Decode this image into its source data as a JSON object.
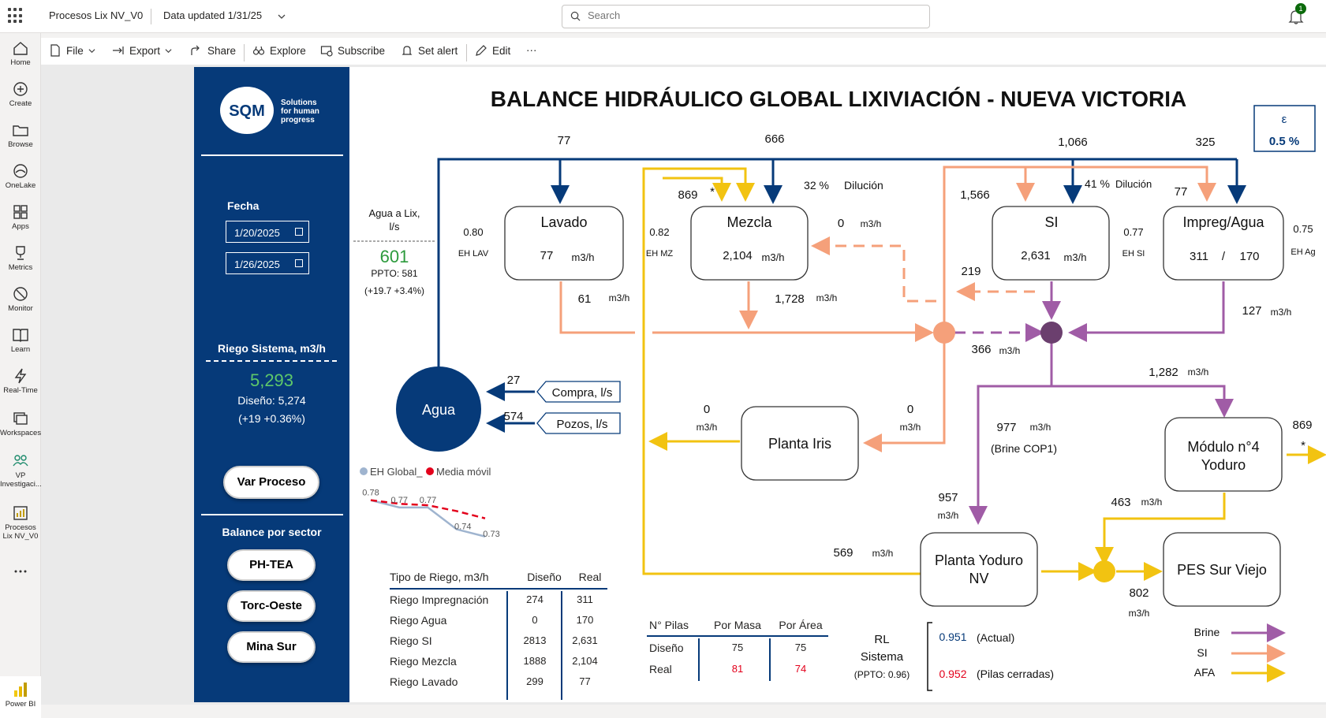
{
  "topbar": {
    "report_name": "Procesos Lix NV_V0",
    "data_updated": "Data updated 1/31/25",
    "search_placeholder": "Search",
    "notifications": "1"
  },
  "toolbar": {
    "file": "File",
    "export": "Export",
    "share": "Share",
    "explore": "Explore",
    "subscribe": "Subscribe",
    "set_alert": "Set alert",
    "edit": "Edit",
    "more": "···"
  },
  "leftnav": {
    "items": [
      {
        "label": "Home",
        "icon": "home-icon"
      },
      {
        "label": "Create",
        "icon": "plus-circle-icon"
      },
      {
        "label": "Browse",
        "icon": "folder-icon"
      },
      {
        "label": "OneLake",
        "icon": "onelake-icon"
      },
      {
        "label": "Apps",
        "icon": "apps-icon"
      },
      {
        "label": "Metrics",
        "icon": "trophy-icon"
      },
      {
        "label": "Monitor",
        "icon": "monitor-icon"
      },
      {
        "label": "Learn",
        "icon": "book-icon"
      },
      {
        "label": "Real-Time",
        "icon": "lightning-icon"
      },
      {
        "label": "Workspaces",
        "icon": "workspaces-icon"
      },
      {
        "label": "VP Investigaci...",
        "icon": "group-icon"
      },
      {
        "label": "Procesos Lix NV_V0",
        "icon": "report-icon"
      },
      {
        "label": "...",
        "icon": "more-icon"
      }
    ],
    "powerbi": "Power BI"
  },
  "side": {
    "logo_text": "SQM",
    "tagline_1": "Solutions",
    "tagline_2": "for human",
    "tagline_3": "progress",
    "fecha_label": "Fecha",
    "date_from": "1/20/2025",
    "date_to": "1/26/2025",
    "riego_title": "Riego Sistema, m3/h",
    "riego_value": "5,293",
    "riego_design": "Diseño: 5,274",
    "riego_delta": "(+19 +0.36%)",
    "var_proceso": "Var Proceso",
    "balance_title": "Balance por sector",
    "sectors": [
      "PH-TEA",
      "Torc-Oeste",
      "Mina Sur"
    ]
  },
  "diagram": {
    "title": "BALANCE HIDRÁULICO GLOBAL LIXIVIACIÓN - NUEVA VICTORIA",
    "epsilon_label": "ε",
    "epsilon_value": "0.5 %",
    "top_values": {
      "lavado": "77",
      "mezcla": "666",
      "si": "1,066",
      "impreg": "325"
    },
    "agua_lix_label_1": "Agua a Lix,",
    "agua_lix_label_2": "l/s",
    "agua_lix_value": "601",
    "agua_lix_ppto": "PPTO: 581",
    "agua_lix_delta": "(+19.7 +3.4%)",
    "nodes": {
      "lavado": {
        "name": "Lavado",
        "value": "77",
        "unit": "m3/h"
      },
      "mezcla": {
        "name": "Mezcla",
        "value": "2,104",
        "unit": "m3/h"
      },
      "si": {
        "name": "SI",
        "value": "2,631",
        "unit": "m3/h"
      },
      "impreg": {
        "name": "Impreg/Agua",
        "value_1": "311",
        "sep": "/",
        "value_2": "170"
      },
      "iris": {
        "name": "Planta Iris"
      },
      "modulo": {
        "name_1": "Módulo n°4",
        "name_2": "Yoduro"
      },
      "yoduro": {
        "name_1": "Planta Yoduro",
        "name_2": "NV"
      },
      "pes": {
        "name": "PES Sur Viejo"
      },
      "agua": {
        "name": "Agua"
      }
    },
    "eh": {
      "lav_val": "0.80",
      "lav_lbl": "EH LAV",
      "mz_val": "0.82",
      "mz_lbl": "EH MZ",
      "si_val": "0.77",
      "si_lbl": "EH SI",
      "ag_val": "0.75",
      "ag_lbl": "EH Ag"
    },
    "flows": {
      "mezcla_afa_in": "869",
      "asterisk": "*",
      "dilucion_mz_pct": "32 %",
      "dilucion_label": "Dilución",
      "si_in": "1,566",
      "dilucion_si_pct": "41 %",
      "impreg_in": "77",
      "mezcla_return": "0",
      "mezcla_return_unit": "m3/h",
      "si_return": "219",
      "lavado_out": "61",
      "lavado_out_unit": "m3/h",
      "mezcla_out": "1,728",
      "mezcla_out_unit": "m3/h",
      "impreg_out": "127",
      "impreg_out_unit": "m3/h",
      "brine_mix": "366",
      "brine_mix_unit": "m3/h",
      "modulo_in": "1,282",
      "modulo_in_unit": "m3/h",
      "compra": "27",
      "compra_label": "Compra, l/s",
      "pozos": "574",
      "pozos_label": "Pozos, l/s",
      "iris_out": "0",
      "iris_out_unit": "m3/h",
      "iris_in": "0",
      "iris_in_unit": "m3/h",
      "brine_cop": "977",
      "brine_cop_unit": "m3/h",
      "brine_cop_label": "(Brine COP1)",
      "modulo_out": "869",
      "yoduro_in": "957",
      "yoduro_in_unit": "m3/h",
      "modulo_to_pes": "463",
      "modulo_to_pes_unit": "m3/h",
      "afa_yoduro": "569",
      "afa_yoduro_unit": "m3/h",
      "pes_in": "802",
      "pes_in_unit": "m3/h"
    },
    "legend": {
      "brine": "Brine",
      "si": "SI",
      "afa": "AFA"
    },
    "colors": {
      "brine": "#a05ca6",
      "si": "#f5a07a",
      "afa": "#f2c311",
      "agua": "#063a79",
      "mix_si": "#f5a07a",
      "mix_brine": "#6b3f6e"
    }
  },
  "eh_chart": {
    "legend_1": "EH Global_",
    "legend_2": "Media móvil",
    "values": [
      0.78,
      0.77,
      0.77,
      0.74,
      0.73
    ],
    "labels": [
      "0.78",
      "0.77",
      "0.77",
      "0.74",
      "0.73"
    ],
    "moving_avg": [
      0.78,
      0.775,
      0.773,
      0.765,
      0.755
    ],
    "colors": {
      "global": "#9fb4cf",
      "moving": "#e3001b"
    }
  },
  "riego_table": {
    "headers": [
      "Tipo de Riego, m3/h",
      "Diseño",
      "Real"
    ],
    "rows": [
      [
        "Riego Impregnación",
        "274",
        "311"
      ],
      [
        "Riego Agua",
        "0",
        "170"
      ],
      [
        "Riego SI",
        "2813",
        "2,631"
      ],
      [
        "Riego Mezcla",
        "1888",
        "2,104"
      ],
      [
        "Riego Lavado",
        "299",
        "77"
      ]
    ]
  },
  "pilas_table": {
    "headers": [
      "N° Pilas",
      "Por Masa",
      "Por Área"
    ],
    "rows": [
      [
        "Diseño",
        "75",
        "75"
      ],
      [
        "Real",
        "81",
        "74"
      ]
    ]
  },
  "rl": {
    "label_1": "RL",
    "label_2": "Sistema",
    "ppto": "(PPTO: 0.96)",
    "actual_value": "0.951",
    "actual_label": "(Actual)",
    "cerradas_value": "0.952",
    "cerradas_label": "(Pilas cerradas)"
  }
}
